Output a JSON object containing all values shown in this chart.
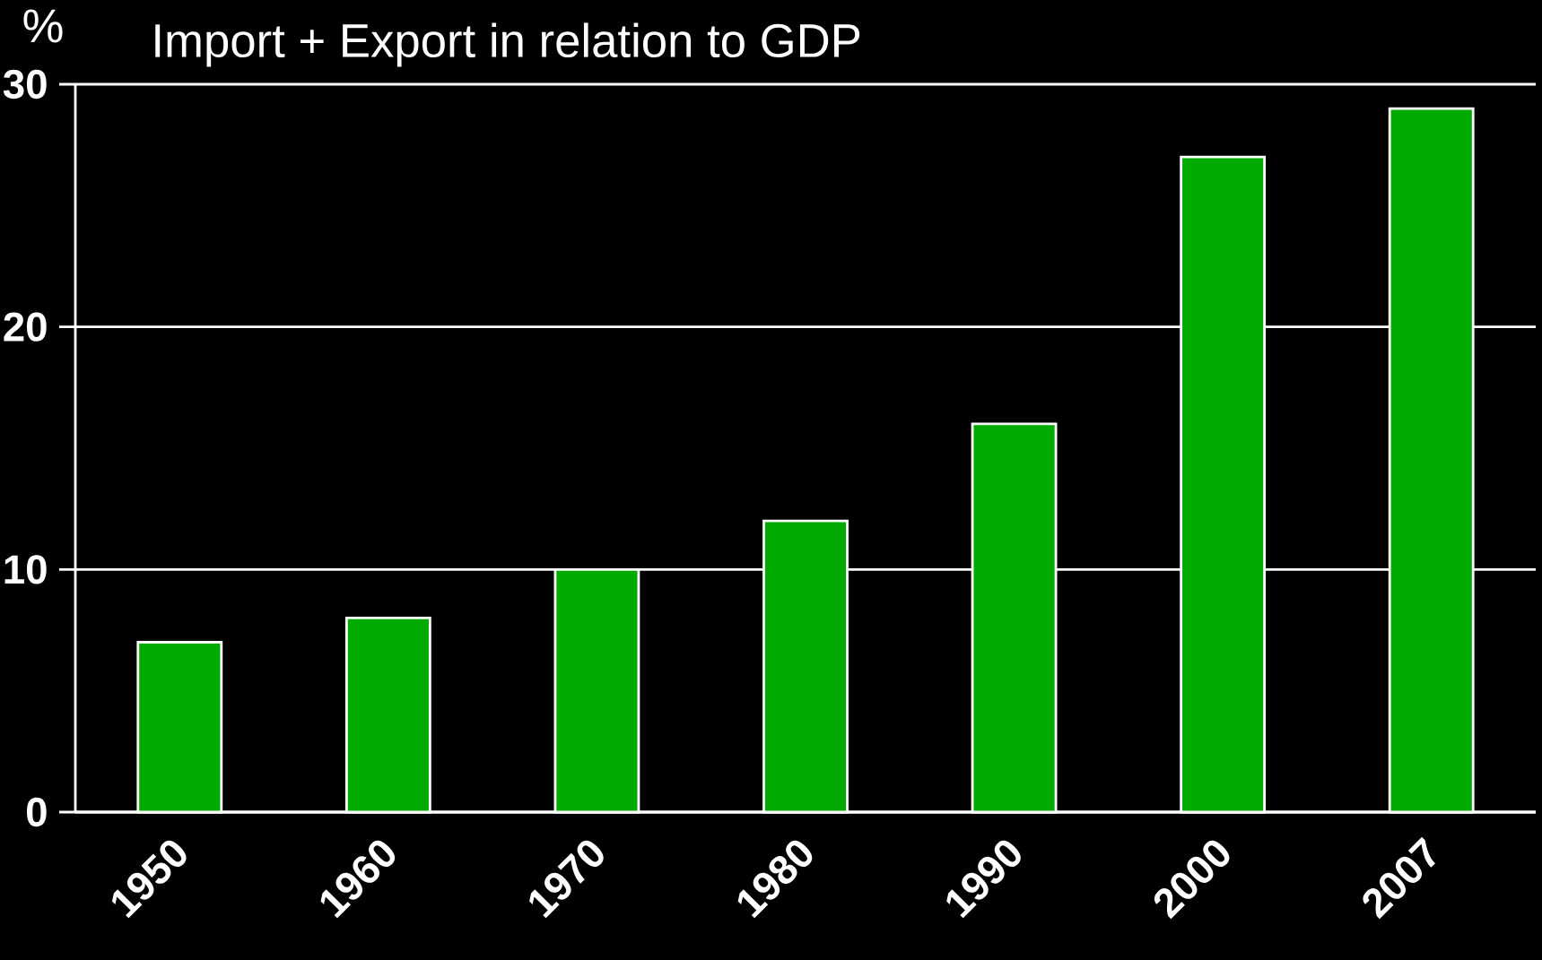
{
  "chart_data": {
    "type": "bar",
    "title": "Import + Export in relation to GDP",
    "ylabel": "%",
    "categories": [
      "1950",
      "1960",
      "1970",
      "1980",
      "1990",
      "2000",
      "2007"
    ],
    "values": [
      7,
      8,
      10,
      12,
      16,
      27,
      29
    ],
    "color": "#00aa00",
    "ylim": [
      0,
      30
    ],
    "yticks": [
      0,
      10,
      20,
      30
    ],
    "grid": "y"
  }
}
